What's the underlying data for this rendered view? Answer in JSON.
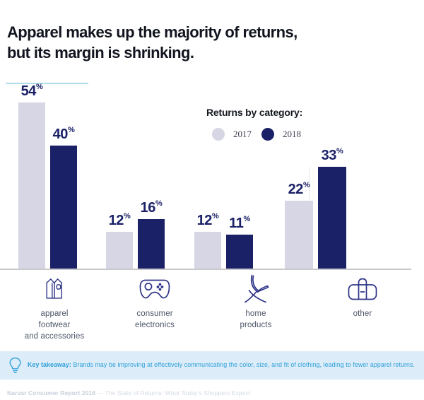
{
  "title": {
    "text": "Apparel makes up the majority of returns,\nbut its margin is shrinking."
  },
  "legend": {
    "title": "Returns by category:",
    "items": [
      {
        "label": "2017",
        "color": "#d6d6e4"
      },
      {
        "label": "2018",
        "color": "#1b2167"
      }
    ]
  },
  "chart_data": {
    "type": "bar",
    "title": "Returns by category:",
    "categories": [
      "apparel footwear and accessories",
      "consumer electronics",
      "home products",
      "other"
    ],
    "series": [
      {
        "name": "2017",
        "color": "#d6d6e4",
        "values": [
          54,
          12,
          12,
          22
        ]
      },
      {
        "name": "2018",
        "color": "#1b2167",
        "values": [
          40,
          16,
          11,
          33
        ]
      }
    ],
    "value_suffix": "%",
    "ylim": [
      0,
      60
    ],
    "grid": false,
    "legend_position": "top-right",
    "xlabel": "",
    "ylabel": ""
  },
  "groups": [
    {
      "display": "apparel\nfootwear\nand accessories",
      "icon": "shirt-icon"
    },
    {
      "display": "consumer\nelectronics",
      "icon": "game-controller-icon"
    },
    {
      "display": "home\nproducts",
      "icon": "chair-icon"
    },
    {
      "display": "other",
      "icon": "duffel-bag-icon"
    }
  ],
  "takeaway": {
    "label": "Key takeaway:",
    "text": "Brands may be improving at effectively communicating the color, size, and fit of clothing, leading to fewer apparel returns."
  },
  "footer": {
    "bold": "Narvar Consumer Report 2018",
    "rest": "— The State of Returns: What Today’s Shoppers Expect"
  },
  "colors": {
    "bar_2017": "#d6d6e4",
    "bar_2018": "#1b2167",
    "value_label": "#1b2167",
    "icon_stroke": "#2e3487",
    "takeaway_bg": "#dcedf9",
    "takeaway_text": "#2d9ed8",
    "title_underline": "#b2dcea",
    "axis_line": "#c9c9cc"
  }
}
